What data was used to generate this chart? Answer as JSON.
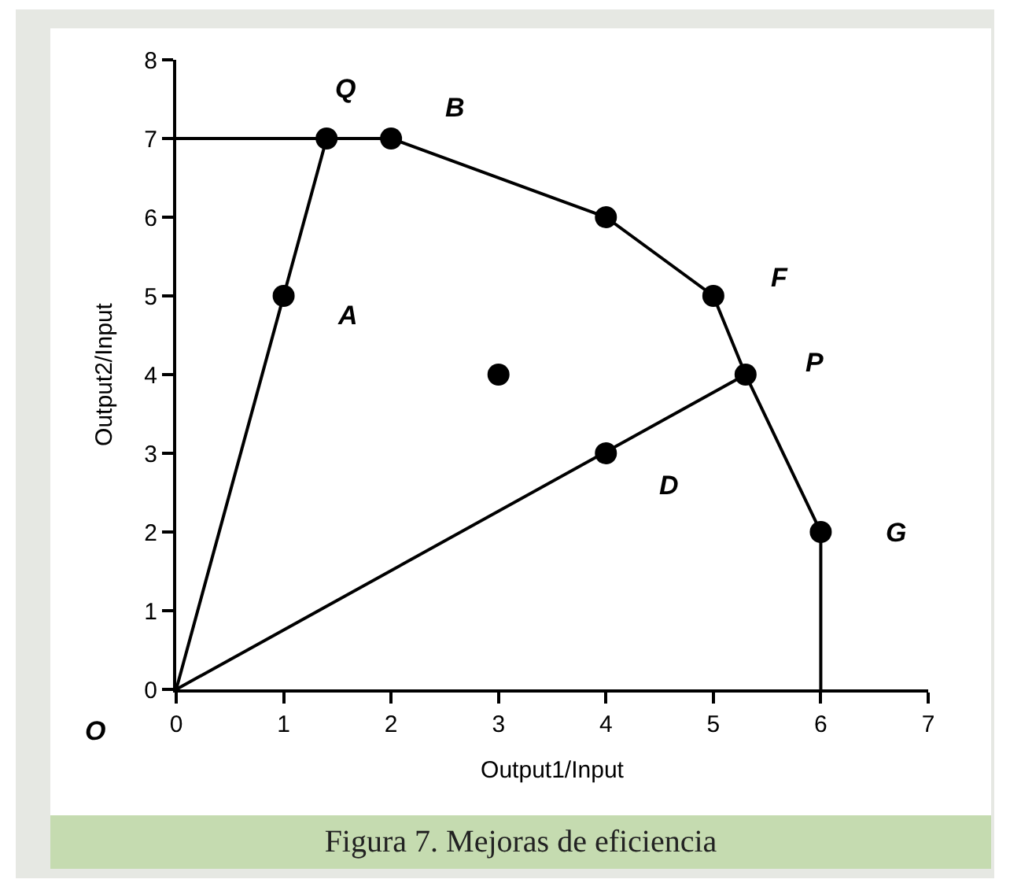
{
  "chart_data": {
    "type": "scatter",
    "title": "Figura 7. Mejoras de eficiencia",
    "xlabel": "Output1/Input",
    "ylabel": "Output2/Input",
    "xlim": [
      0,
      7
    ],
    "ylim": [
      0,
      8
    ],
    "xticks": [
      0,
      1,
      2,
      3,
      4,
      5,
      6,
      7
    ],
    "yticks": [
      0,
      1,
      2,
      3,
      4,
      5,
      6,
      7,
      8
    ],
    "grid": false,
    "series": [
      {
        "type": "line",
        "marker": "none",
        "color": "#000000",
        "x": [
          0,
          1.4,
          2,
          4,
          5,
          5.3,
          6,
          6
        ],
        "values": [
          7,
          7,
          7,
          6,
          5,
          4,
          2,
          0
        ]
      },
      {
        "type": "line",
        "marker": "none",
        "color": "#000000",
        "x": [
          0,
          1.4
        ],
        "values": [
          0,
          7
        ]
      },
      {
        "type": "line",
        "marker": "none",
        "color": "#000000",
        "x": [
          0,
          5.3
        ],
        "values": [
          0,
          4
        ]
      },
      {
        "marker": "circle",
        "color": "#000000",
        "x": [
          1.4,
          2,
          4,
          5,
          5.3,
          6,
          1,
          4,
          3
        ],
        "values": [
          7,
          7,
          6,
          5,
          4,
          2,
          5,
          3,
          4
        ]
      }
    ],
    "annotations": [
      {
        "text": "Q",
        "x": 1.4,
        "y": 7
      },
      {
        "text": "B",
        "x": 2,
        "y": 7
      },
      {
        "text": "A",
        "x": 1,
        "y": 5
      },
      {
        "text": "F",
        "x": 5,
        "y": 5
      },
      {
        "text": "P",
        "x": 5.3,
        "y": 4
      },
      {
        "text": "D",
        "x": 4,
        "y": 3
      },
      {
        "text": "G",
        "x": 6,
        "y": 2
      },
      {
        "text": "O",
        "x": 0,
        "y": 0
      }
    ]
  }
}
